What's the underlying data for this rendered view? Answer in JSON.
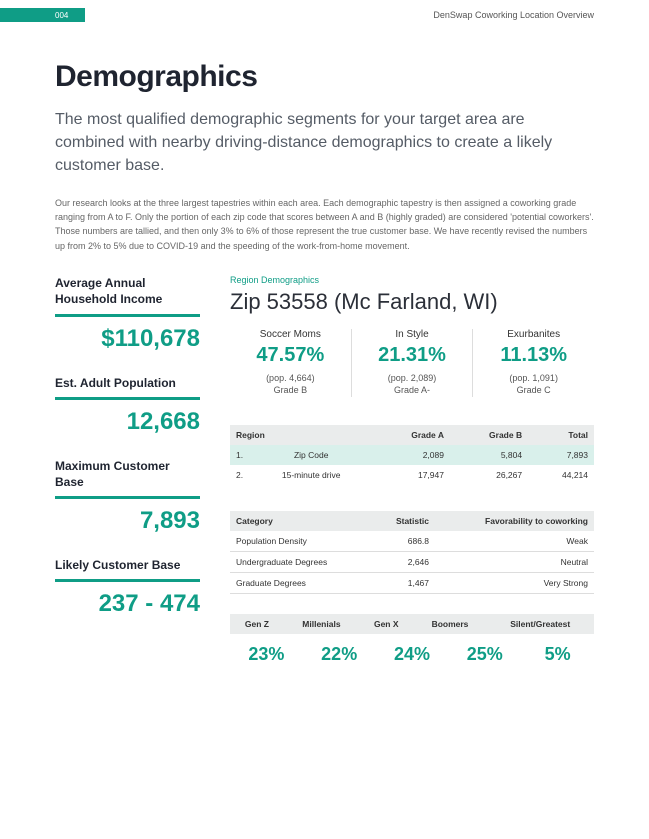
{
  "header": {
    "page_num": "004",
    "doc_title": "DenSwap Coworking Location Overview"
  },
  "title": "Demographics",
  "lead": "The most qualified demographic segments for your target area are combined with nearby driving-distance demographics to create a likely customer base.",
  "body": "Our research looks at the three largest tapestries within each area. Each demographic tapestry is then assigned a coworking grade ranging from A to F. Only the portion of each zip code that scores between A and B (highly graded) are considered 'potential coworkers'. Those numbers are tallied, and then only 3% to 6% of those represent the true customer base. We have recently revised the numbers up from 2% to 5% due to COVID-19 and the speeding of the work-from-home movement.",
  "stats": {
    "income_label": "Average Annual Household Income",
    "income_value": "$110,678",
    "pop_label": "Est. Adult Population",
    "pop_value": "12,668",
    "max_label": "Maximum Customer Base",
    "max_value": "7,893",
    "likely_label": "Likely Customer Base",
    "likely_value": "237 - 474"
  },
  "region": {
    "eyebrow": "Region Demographics",
    "zip": "Zip 53558 (Mc Farland, WI)",
    "segments": [
      {
        "name": "Soccer Moms",
        "pct": "47.57%",
        "pop": "(pop. 4,664)",
        "grade": "Grade B"
      },
      {
        "name": "In Style",
        "pct": "21.31%",
        "pop": "(pop. 2,089)",
        "grade": "Grade A-"
      },
      {
        "name": "Exurbanites",
        "pct": "11.13%",
        "pop": "(pop. 1,091)",
        "grade": "Grade C"
      }
    ]
  },
  "table1": {
    "headers": {
      "c0": "Region",
      "c1": "Grade A",
      "c2": "Grade B",
      "c3": "Total"
    },
    "rows": [
      {
        "n": "1.",
        "name": "Zip Code",
        "a": "2,089",
        "b": "5,804",
        "t": "7,893"
      },
      {
        "n": "2.",
        "name": "15-minute drive",
        "a": "17,947",
        "b": "26,267",
        "t": "44,214"
      }
    ]
  },
  "table2": {
    "headers": {
      "c0": "Category",
      "c1": "Statistic",
      "c2": "Favorability to coworking"
    },
    "rows": [
      {
        "cat": "Population Density",
        "stat": "686.8",
        "fav": "Weak"
      },
      {
        "cat": "Undergraduate Degrees",
        "stat": "2,646",
        "fav": "Neutral"
      },
      {
        "cat": "Graduate Degrees",
        "stat": "1,467",
        "fav": "Very Strong"
      }
    ]
  },
  "gens": {
    "headers": [
      "Gen Z",
      "Millenials",
      "Gen X",
      "Boomers",
      "Silent/Greatest"
    ],
    "values": [
      "23%",
      "22%",
      "24%",
      "25%",
      "5%"
    ]
  }
}
